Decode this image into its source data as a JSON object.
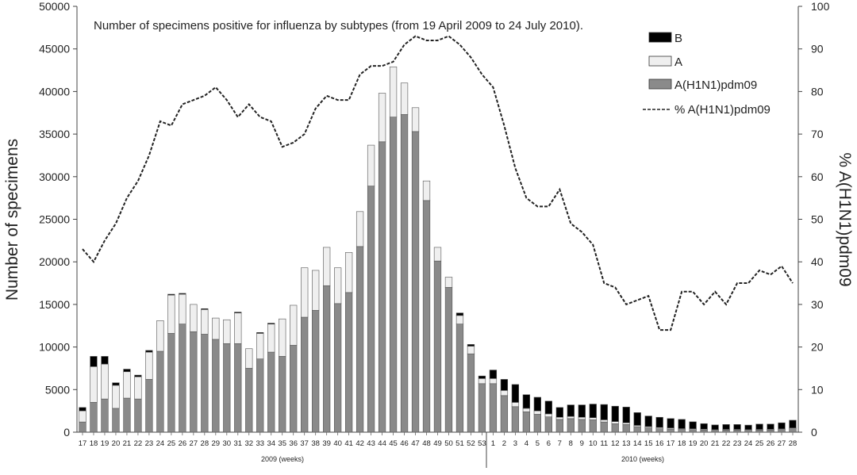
{
  "chart_data": {
    "type": "bar",
    "title": "Number of specimens positive for influenza by subtypes (from 19 April 2009 to 24 July 2010).",
    "ylabel": "Number of specimens",
    "y2label": "% A(H1N1)pdm09",
    "ylim": [
      0,
      50000
    ],
    "y2lim": [
      0,
      100
    ],
    "yticks": [
      "0",
      "5000",
      "10000",
      "15000",
      "20000",
      "25000",
      "30000",
      "35000",
      "40000",
      "45000",
      "50000"
    ],
    "y2ticks": [
      "0",
      "10",
      "20",
      "30",
      "40",
      "50",
      "60",
      "70",
      "80",
      "90",
      "100"
    ],
    "year_labels": [
      "2009 (weeks)",
      "2010 (weeks)"
    ],
    "categories": [
      "17",
      "18",
      "19",
      "20",
      "21",
      "22",
      "23",
      "24",
      "25",
      "26",
      "27",
      "28",
      "29",
      "30",
      "31",
      "32",
      "33",
      "34",
      "35",
      "36",
      "37",
      "38",
      "39",
      "40",
      "41",
      "42",
      "43",
      "44",
      "45",
      "46",
      "47",
      "48",
      "49",
      "50",
      "51",
      "52",
      "53",
      "1",
      "2",
      "3",
      "4",
      "5",
      "6",
      "7",
      "8",
      "9",
      "10",
      "11",
      "12",
      "13",
      "14",
      "15",
      "16",
      "17",
      "18",
      "19",
      "20",
      "21",
      "22",
      "23",
      "24",
      "25",
      "26",
      "27",
      "28"
    ],
    "series": [
      {
        "name": "A(H1N1)pdm09",
        "color": "#8a8a8a",
        "values": [
          1200,
          3500,
          3900,
          2800,
          4000,
          3900,
          6200,
          9500,
          11600,
          12700,
          11800,
          11500,
          10900,
          10400,
          10400,
          7500,
          8600,
          9400,
          8900,
          10200,
          13500,
          14300,
          17200,
          15100,
          16400,
          21800,
          28900,
          34100,
          37000,
          37300,
          35300,
          27200,
          20100,
          17000,
          12700,
          9200,
          5700,
          5700,
          4300,
          3000,
          2400,
          2100,
          1800,
          1500,
          1600,
          1500,
          1450,
          1200,
          1000,
          900,
          650,
          500,
          400,
          380,
          320,
          300,
          260,
          220,
          250,
          250,
          230,
          250,
          260,
          300,
          400
        ]
      },
      {
        "name": "A",
        "color": "#efefef",
        "values": [
          1300,
          4200,
          4100,
          2700,
          3100,
          2600,
          3200,
          3600,
          4500,
          3500,
          3200,
          2900,
          2500,
          2800,
          3600,
          2300,
          3000,
          3300,
          4400,
          4700,
          5800,
          4700,
          4500,
          4200,
          4700,
          4100,
          4800,
          5700,
          5900,
          3700,
          2800,
          2300,
          1600,
          1200,
          1000,
          900,
          600,
          600,
          600,
          500,
          400,
          400,
          350,
          250,
          250,
          250,
          250,
          250,
          250,
          200,
          150,
          150,
          150,
          120,
          100,
          100,
          90,
          80,
          80,
          80,
          80,
          80,
          80,
          90,
          100
        ]
      },
      {
        "name": "B",
        "color": "#000000",
        "values": [
          400,
          1200,
          900,
          300,
          300,
          200,
          200,
          0,
          100,
          100,
          0,
          100,
          0,
          0,
          100,
          0,
          100,
          100,
          0,
          0,
          0,
          0,
          0,
          0,
          0,
          0,
          0,
          0,
          0,
          0,
          0,
          0,
          0,
          0,
          300,
          200,
          300,
          1000,
          1300,
          2100,
          1600,
          1600,
          1500,
          1150,
          1350,
          1450,
          1600,
          1800,
          1800,
          1850,
          1500,
          1250,
          1200,
          1100,
          1080,
          820,
          650,
          550,
          570,
          570,
          520,
          620,
          610,
          710,
          900
        ]
      }
    ],
    "line": {
      "name": "% A(H1N1)pdm09",
      "values": [
        43,
        40,
        45,
        49,
        55,
        59,
        65,
        73,
        72,
        77,
        78,
        79,
        81,
        78,
        74,
        77,
        74,
        73,
        67,
        68,
        70,
        76,
        79,
        78,
        78,
        84,
        86,
        86,
        87,
        91,
        93,
        92,
        92,
        93,
        91,
        88,
        84,
        81,
        72,
        62,
        55,
        53,
        53,
        57,
        49,
        47,
        44,
        35,
        34,
        30,
        31,
        32,
        24,
        24,
        33,
        33,
        30,
        33,
        30,
        35,
        35,
        38,
        37,
        39,
        35
      ]
    },
    "legend": [
      "B",
      "A",
      "A(H1N1)pdm09",
      "% A(H1N1)pdm09"
    ],
    "legend_position": "top-right",
    "grid": false
  }
}
